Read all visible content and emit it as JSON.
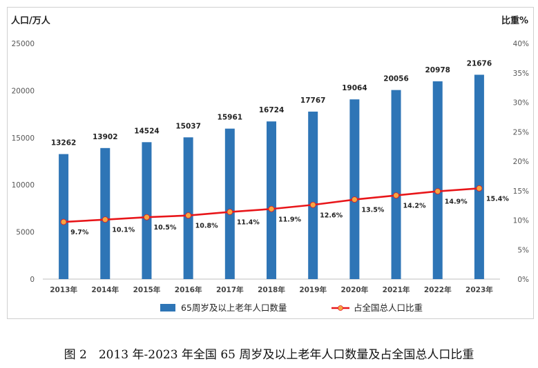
{
  "caption": "图 2　2013 年-2023 年全国 65 周岁及以上老年人口数量及占全国总人口比重",
  "colors": {
    "bar": "#2e75b6",
    "line": "#e8161a",
    "marker": "#f5a742"
  },
  "chart_data": {
    "type": "bar",
    "categories": [
      "2013年",
      "2014年",
      "2015年",
      "2016年",
      "2017年",
      "2018年",
      "2019年",
      "2020年",
      "2021年",
      "2022年",
      "2023年"
    ],
    "series": [
      {
        "name": "65周岁及以上老年人口数量",
        "type": "bar",
        "axis": "left",
        "values": [
          13262,
          13902,
          14524,
          15037,
          15961,
          16724,
          17767,
          19064,
          20056,
          20978,
          21676
        ]
      },
      {
        "name": "占全国总人口比重",
        "type": "line",
        "axis": "right",
        "values": [
          9.7,
          10.1,
          10.5,
          10.8,
          11.4,
          11.9,
          12.6,
          13.5,
          14.2,
          14.9,
          15.4
        ]
      }
    ],
    "ylabel": "人口/万人",
    "y2label": "比重%",
    "ylim": [
      0,
      25000
    ],
    "y2lim": [
      0,
      40
    ],
    "yticks": [
      "0",
      "5000",
      "10000",
      "15000",
      "20000",
      "25000"
    ],
    "y2ticks": [
      "0%",
      "5%",
      "10%",
      "15%",
      "20%",
      "25%",
      "30%",
      "35%",
      "40%"
    ],
    "bar_labels": [
      "13262",
      "13902",
      "14524",
      "15037",
      "15961",
      "16724",
      "17767",
      "19064",
      "20056",
      "20978",
      "21676"
    ],
    "line_labels": [
      "9.7%",
      "10.1%",
      "10.5%",
      "10.8%",
      "11.4%",
      "11.9%",
      "12.6%",
      "13.5%",
      "14.2%",
      "14.9%",
      "15.4%"
    ],
    "grid": false,
    "legend": "bottom"
  }
}
